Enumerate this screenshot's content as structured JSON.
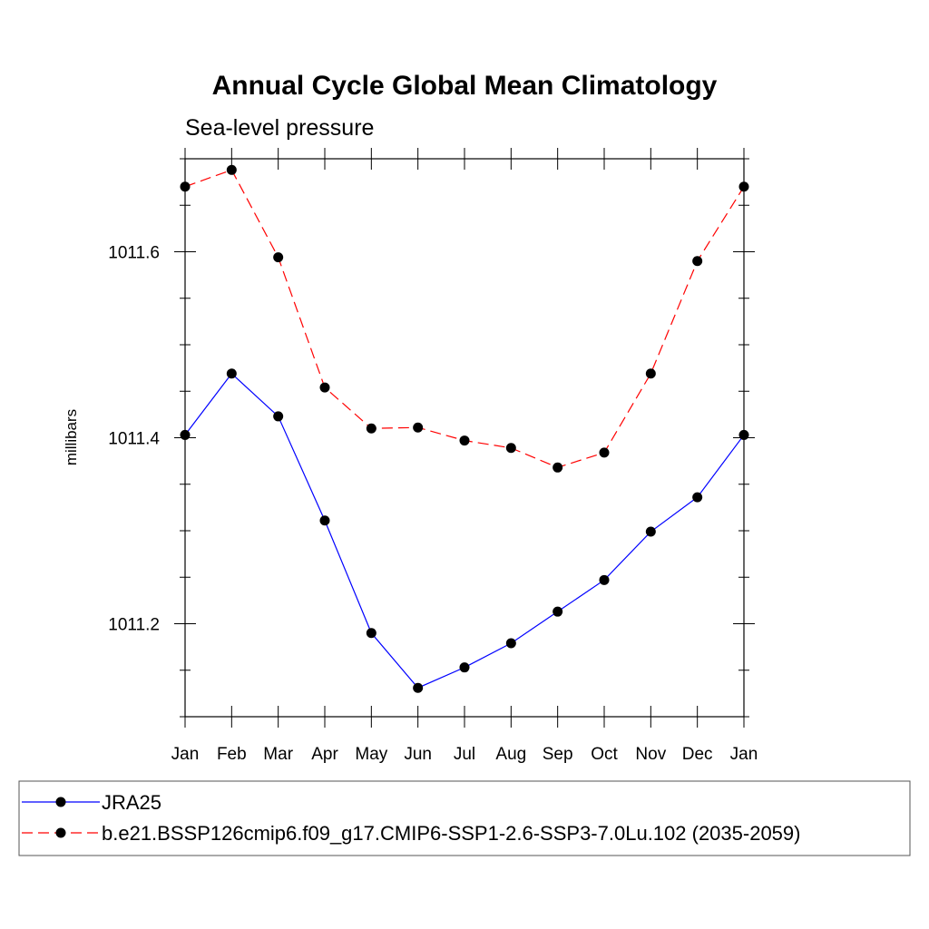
{
  "chart_data": {
    "type": "line",
    "title": "Annual Cycle Global Mean Climatology",
    "subtitle": "Sea-level pressure",
    "xlabel": "",
    "ylabel": "millibars",
    "categories": [
      "Jan",
      "Feb",
      "Mar",
      "Apr",
      "May",
      "Jun",
      "Jul",
      "Aug",
      "Sep",
      "Oct",
      "Nov",
      "Dec",
      "Jan"
    ],
    "ylim": [
      1011.1,
      1011.7
    ],
    "yticks": [
      1011.2,
      1011.4,
      1011.6
    ],
    "ytick_labels": [
      "1011.2",
      "1011.4",
      "1011.6"
    ],
    "grid": false,
    "legend_position": "bottom",
    "series": [
      {
        "name": "JRA25",
        "color": "#0000ff",
        "dash": "solid",
        "marker": "circle",
        "values": [
          1011.403,
          1011.469,
          1011.423,
          1011.311,
          1011.19,
          1011.131,
          1011.153,
          1011.179,
          1011.213,
          1011.247,
          1011.299,
          1011.336,
          1011.403
        ]
      },
      {
        "name": "b.e21.BSSP126cmip6.f09_g17.CMIP6-SSP1-2.6-SSP3-7.0Lu.102 (2035-2059)",
        "color": "#ff0000",
        "dash": "dashed",
        "marker": "circle",
        "values": [
          1011.67,
          1011.688,
          1011.594,
          1011.454,
          1011.41,
          1011.411,
          1011.397,
          1011.389,
          1011.368,
          1011.384,
          1011.469,
          1011.59,
          1011.67
        ]
      }
    ]
  }
}
